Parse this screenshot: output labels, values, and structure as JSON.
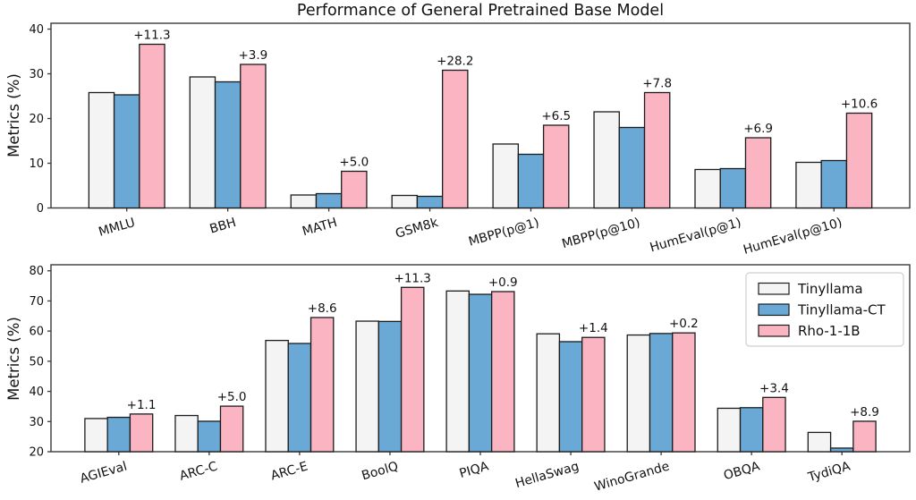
{
  "figure_title": "Performance of General Pretrained Base Model",
  "colors": {
    "background": "#ffffff",
    "bar_edge": "#1c1c1c",
    "spine": "#3a3a3a",
    "legend_border": "#cfcfcf",
    "series": {
      "tinyllama": "#f4f4f4",
      "tinyllama_ct": "#6aa9d5",
      "rho_1_1b": "#fab4c2"
    }
  },
  "chart_data": [
    {
      "type": "bar",
      "title": "Performance of General Pretrained Base Model",
      "xlabel": "",
      "ylabel": "Metrics (%)",
      "ylim": [
        0,
        41.3
      ],
      "yticks": [
        0,
        10,
        20,
        30,
        40
      ],
      "grid": false,
      "legend_position": null,
      "categories": [
        "MMLU",
        "BBH",
        "MATH",
        "GSM8k",
        "MBPP(p@1)",
        "MBPP(p@10)",
        "HumEval(p@1)",
        "HumEval(p@10)"
      ],
      "series": [
        {
          "name": "Tinyllama",
          "color": "#f4f4f4",
          "values": [
            25.8,
            29.3,
            2.9,
            2.8,
            14.3,
            21.5,
            8.6,
            10.2
          ]
        },
        {
          "name": "Tinyllama-CT",
          "color": "#6aa9d5",
          "values": [
            25.3,
            28.2,
            3.2,
            2.6,
            12.0,
            18.0,
            8.8,
            10.6
          ]
        },
        {
          "name": "Rho-1-1B",
          "color": "#fab4c2",
          "values": [
            36.6,
            32.1,
            8.2,
            30.8,
            18.5,
            25.8,
            15.7,
            21.2
          ]
        }
      ],
      "annotations": [
        "+11.3",
        "+3.9",
        "+5.0",
        "+28.2",
        "+6.5",
        "+7.8",
        "+6.9",
        "+10.6"
      ],
      "annotations_on_series": "Rho-1-1B"
    },
    {
      "type": "bar",
      "title": "",
      "xlabel": "",
      "ylabel": "Metrics (%)",
      "ylim": [
        20,
        82
      ],
      "yticks": [
        20,
        30,
        40,
        50,
        60,
        70,
        80
      ],
      "grid": false,
      "legend_position": "upper right",
      "categories": [
        "AGIEval",
        "ARC-C",
        "ARC-E",
        "BoolQ",
        "PIQA",
        "HellaSwag",
        "WinoGrande",
        "OBQA",
        "TydiQA"
      ],
      "series": [
        {
          "name": "Tinyllama",
          "color": "#f4f4f4",
          "values": [
            31.0,
            32.0,
            56.9,
            63.3,
            73.3,
            59.1,
            58.7,
            34.4,
            26.4
          ]
        },
        {
          "name": "Tinyllama-CT",
          "color": "#6aa9d5",
          "values": [
            31.4,
            30.1,
            55.9,
            63.2,
            72.2,
            56.5,
            59.2,
            34.6,
            21.2
          ]
        },
        {
          "name": "Rho-1-1B",
          "color": "#fab4c2",
          "values": [
            32.5,
            35.1,
            64.5,
            74.5,
            73.1,
            57.9,
            59.4,
            38.0,
            30.1
          ]
        }
      ],
      "annotations": [
        "+1.1",
        "+5.0",
        "+8.6",
        "+11.3",
        "+0.9",
        "+1.4",
        "+0.2",
        "+3.4",
        "+8.9"
      ],
      "annotations_on_series": "Rho-1-1B"
    }
  ],
  "legend": {
    "entries": [
      "Tinyllama",
      "Tinyllama-CT",
      "Rho-1-1B"
    ]
  }
}
